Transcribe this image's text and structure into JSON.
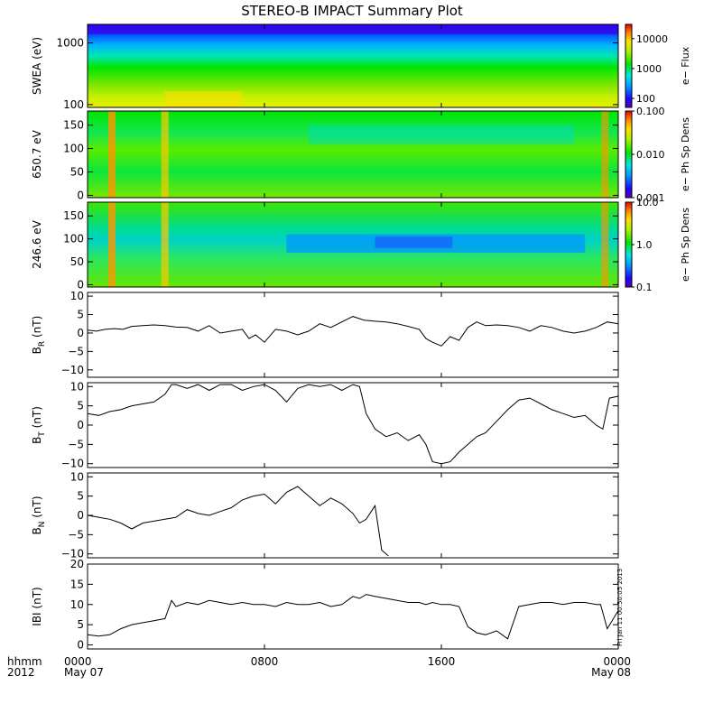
{
  "chart_data": {
    "type": "multi-panel",
    "title": "STEREO-B IMPACT Summary Plot",
    "footer": {
      "row_labels": [
        "hhmm",
        "2012"
      ],
      "x_ticks": [
        {
          "label": "0000",
          "sub": "May 07",
          "hour": 0
        },
        {
          "label": "0800",
          "sub": "",
          "hour": 8
        },
        {
          "label": "1600",
          "sub": "",
          "hour": 16
        },
        {
          "label": "0000",
          "sub": "May 08",
          "hour": 24
        }
      ],
      "x_range_hours": [
        0,
        24
      ]
    },
    "stamp": "Fri Jan 11 00:50:05 2013",
    "panels": [
      {
        "id": "swea",
        "type": "heatmap",
        "ylabel": "SWEA (eV)",
        "yscale": "log",
        "ylim": [
          90,
          2000
        ],
        "yticks": [
          {
            "v": 100,
            "t": "100"
          },
          {
            "v": 1000,
            "t": "1000"
          }
        ],
        "colorbar": {
          "label": "e− Flux",
          "scale": "log",
          "range": [
            50,
            30000
          ],
          "ticks": [
            {
              "v": 100,
              "t": "100"
            },
            {
              "v": 1000,
              "t": "1000"
            },
            {
              "v": 10000,
              "t": "10000"
            }
          ]
        }
      },
      {
        "id": "pad650",
        "type": "heatmap",
        "ylabel": "650.7 eV",
        "yscale": "linear",
        "ylim": [
          -5,
          180
        ],
        "yticks": [
          {
            "v": 0,
            "t": "0"
          },
          {
            "v": 50,
            "t": "50"
          },
          {
            "v": 100,
            "t": "100"
          },
          {
            "v": 150,
            "t": "150"
          }
        ],
        "colorbar": {
          "label": "e− Ph Sp Dens",
          "scale": "log",
          "range": [
            0.001,
            0.1
          ],
          "ticks": [
            {
              "v": 0.001,
              "t": "0.001"
            },
            {
              "v": 0.01,
              "t": "0.010"
            },
            {
              "v": 0.1,
              "t": "0.100"
            }
          ]
        }
      },
      {
        "id": "pad246",
        "type": "heatmap",
        "ylabel": "246.6 eV",
        "yscale": "linear",
        "ylim": [
          -5,
          180
        ],
        "yticks": [
          {
            "v": 0,
            "t": "0"
          },
          {
            "v": 50,
            "t": "50"
          },
          {
            "v": 100,
            "t": "100"
          },
          {
            "v": 150,
            "t": "150"
          }
        ],
        "colorbar": {
          "label": "e− Ph Sp Dens",
          "scale": "log",
          "range": [
            0.1,
            10
          ],
          "ticks": [
            {
              "v": 0.1,
              "t": "0.1"
            },
            {
              "v": 1,
              "t": "1.0"
            },
            {
              "v": 10,
              "t": "10.0"
            }
          ]
        }
      },
      {
        "id": "br",
        "type": "line",
        "ylabel": "B",
        "ylabel_sub": "R",
        "ylabel_unit": "(nT)",
        "ylim": [
          -12,
          11
        ],
        "yticks": [
          {
            "v": -10,
            "t": "−10"
          },
          {
            "v": -5,
            "t": "−5"
          },
          {
            "v": 0,
            "t": "0"
          },
          {
            "v": 5,
            "t": "5"
          },
          {
            "v": 10,
            "t": "10"
          }
        ],
        "x": [
          0,
          0.4,
          0.8,
          1.2,
          1.6,
          2,
          2.5,
          3,
          3.5,
          4,
          4.5,
          5,
          5.5,
          6,
          6.5,
          7,
          7.3,
          7.6,
          8,
          8.5,
          9,
          9.5,
          10,
          10.5,
          11,
          11.5,
          12,
          12.5,
          13,
          13.5,
          14,
          14.5,
          15,
          15.3,
          15.6,
          16,
          16.4,
          16.8,
          17.2,
          17.6,
          18,
          18.5,
          19,
          19.5,
          20,
          20.5,
          21,
          21.5,
          22,
          22.5,
          23,
          23.5,
          24
        ],
        "y": [
          0.8,
          0.5,
          1.0,
          1.2,
          1.0,
          1.8,
          2.0,
          2.2,
          2.0,
          1.6,
          1.5,
          0.5,
          2.0,
          0.0,
          0.5,
          1.0,
          -1.5,
          -0.5,
          -2.5,
          1.0,
          0.5,
          -0.5,
          0.5,
          2.5,
          1.5,
          3.0,
          4.5,
          3.5,
          3.2,
          3.0,
          2.5,
          1.8,
          1.0,
          -1.5,
          -2.5,
          -3.5,
          -1.0,
          -2.0,
          1.5,
          3.0,
          2.0,
          2.2,
          2.0,
          1.5,
          0.5,
          2.0,
          1.5,
          0.5,
          0.0,
          0.5,
          1.5,
          3.0,
          2.5
        ]
      },
      {
        "id": "bt",
        "type": "line",
        "ylabel": "B",
        "ylabel_sub": "T",
        "ylabel_unit": "(nT)",
        "ylim": [
          -11,
          11
        ],
        "yticks": [
          {
            "v": -10,
            "t": "−10"
          },
          {
            "v": -5,
            "t": "−5"
          },
          {
            "v": 0,
            "t": "0"
          },
          {
            "v": 5,
            "t": "5"
          },
          {
            "v": 10,
            "t": "10"
          }
        ],
        "x": [
          0,
          0.5,
          1,
          1.5,
          2,
          2.5,
          3,
          3.5,
          3.8,
          4,
          4.5,
          5,
          5.5,
          6,
          6.5,
          7,
          7.5,
          8,
          8.5,
          9,
          9.5,
          10,
          10.5,
          11,
          11.5,
          12,
          12.3,
          12.6,
          13,
          13.5,
          14,
          14.5,
          15,
          15.3,
          15.6,
          16,
          16.4,
          16.8,
          17.2,
          17.6,
          18,
          18.5,
          19,
          19.5,
          20,
          20.5,
          21,
          21.5,
          22,
          22.5,
          23,
          23.3,
          23.6,
          24
        ],
        "y": [
          3.0,
          2.5,
          3.5,
          4.0,
          5.0,
          5.5,
          6.0,
          8.0,
          10.5,
          10.5,
          9.5,
          10.5,
          9.0,
          10.5,
          10.5,
          9.0,
          10.0,
          10.5,
          9.0,
          6.0,
          9.5,
          10.5,
          10.0,
          10.5,
          9.0,
          10.5,
          10.0,
          3.0,
          -1.0,
          -3.0,
          -2.0,
          -4.0,
          -2.5,
          -5.0,
          -9.5,
          -10.0,
          -9.5,
          -7.0,
          -5.0,
          -3.0,
          -2.0,
          1.0,
          4.0,
          6.5,
          7.0,
          5.5,
          4.0,
          3.0,
          2.0,
          2.5,
          0.0,
          -1.0,
          7.0,
          7.5
        ]
      },
      {
        "id": "bn",
        "type": "line",
        "ylabel": "B",
        "ylabel_sub": "N",
        "ylabel_unit": "(nT)",
        "ylim": [
          -11,
          11
        ],
        "yticks": [
          {
            "v": -10,
            "t": "−10"
          },
          {
            "v": -5,
            "t": "−5"
          },
          {
            "v": 0,
            "t": "0"
          },
          {
            "v": 5,
            "t": "5"
          },
          {
            "v": 10,
            "t": "10"
          }
        ],
        "x": [
          0,
          0.5,
          1,
          1.5,
          2,
          2.5,
          3,
          3.5,
          4,
          4.5,
          5,
          5.5,
          6,
          6.5,
          7,
          7.5,
          8,
          8.5,
          9,
          9.5,
          10,
          10.5,
          11,
          11.5,
          12,
          12.3,
          12.6,
          13,
          13.3,
          13.6
        ],
        "y": [
          0.0,
          -0.5,
          -1.0,
          -2.0,
          -3.5,
          -2.0,
          -1.5,
          -1.0,
          -0.5,
          1.5,
          0.5,
          0.0,
          1.0,
          2.0,
          4.0,
          5.0,
          5.5,
          3.0,
          6.0,
          7.5,
          5.0,
          2.5,
          4.5,
          3.0,
          0.5,
          -2.0,
          -1.0,
          2.5,
          -9.0,
          -10.5
        ]
      },
      {
        "id": "btot",
        "type": "line",
        "ylabel": "IBI",
        "ylabel_unit": "(nT)",
        "ylim": [
          -1,
          20
        ],
        "yticks": [
          {
            "v": 0,
            "t": "0"
          },
          {
            "v": 5,
            "t": "5"
          },
          {
            "v": 10,
            "t": "10"
          },
          {
            "v": 15,
            "t": "15"
          },
          {
            "v": 20,
            "t": "20"
          }
        ],
        "x": [
          0,
          0.5,
          1,
          1.5,
          2,
          2.5,
          3,
          3.5,
          3.8,
          4,
          4.5,
          5,
          5.5,
          6,
          6.5,
          7,
          7.5,
          8,
          8.5,
          9,
          9.5,
          10,
          10.5,
          11,
          11.5,
          12,
          12.3,
          12.6,
          13,
          13.5,
          14,
          14.5,
          15,
          15.3,
          15.6,
          16,
          16.4,
          16.8,
          17.2,
          17.6,
          18,
          18.5,
          19,
          19.5,
          20,
          20.5,
          21,
          21.5,
          22,
          22.5,
          23,
          23.2,
          23.5,
          24
        ],
        "y": [
          2.5,
          2.2,
          2.5,
          4.0,
          5.0,
          5.5,
          6.0,
          6.5,
          11.0,
          9.5,
          10.5,
          10.0,
          11.0,
          10.5,
          10.0,
          10.5,
          10.0,
          10.0,
          9.5,
          10.5,
          10.0,
          10.0,
          10.5,
          9.5,
          10.0,
          12.0,
          11.5,
          12.5,
          12.0,
          11.5,
          11.0,
          10.5,
          10.5,
          10.0,
          10.5,
          10.0,
          10.0,
          9.5,
          4.5,
          3.0,
          2.5,
          3.5,
          1.5,
          9.5,
          10.0,
          10.5,
          10.5,
          10.0,
          10.5,
          10.5,
          10.0,
          10.0,
          4.0,
          8.5
        ]
      }
    ]
  }
}
